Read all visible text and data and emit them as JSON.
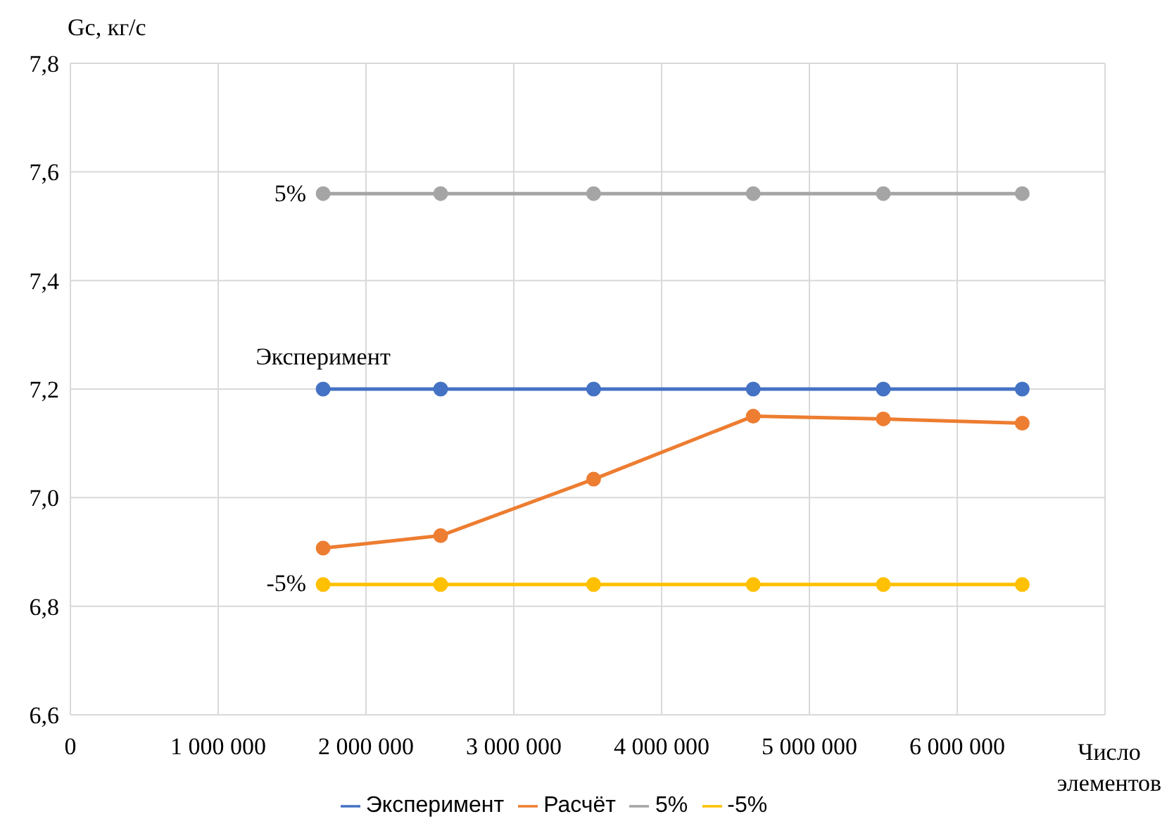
{
  "chart_data": {
    "type": "line",
    "ylabel": "Gc, кг/с",
    "xlabel": "Число элементов",
    "x": [
      1710000,
      2505000,
      3540000,
      4620000,
      5500000,
      6440000
    ],
    "series": [
      {
        "name": "Эксперимент",
        "color": "#4472c4",
        "values": [
          7.2,
          7.2,
          7.2,
          7.2,
          7.2,
          7.2
        ]
      },
      {
        "name": "Расчёт",
        "color": "#ed7d31",
        "values": [
          6.907,
          6.93,
          7.034,
          7.15,
          7.145,
          7.137
        ]
      },
      {
        "name": "5%",
        "color": "#a5a5a5",
        "values": [
          7.56,
          7.56,
          7.56,
          7.56,
          7.56,
          7.56
        ]
      },
      {
        "name": "-5%",
        "color": "#ffc000",
        "values": [
          6.84,
          6.84,
          6.84,
          6.84,
          6.84,
          6.84
        ]
      }
    ],
    "xlim": [
      0,
      7000000
    ],
    "xticks": [
      0,
      {
        "value": 1000000,
        "label": "1 000 000"
      },
      {
        "value": 2000000,
        "label": "2 000 000"
      },
      {
        "value": 3000000,
        "label": "3 000 000"
      },
      {
        "value": 4000000,
        "label": "4 000 000"
      },
      {
        "value": 5000000,
        "label": "5 000 000"
      },
      {
        "value": 6000000,
        "label": "6 000 000"
      }
    ],
    "ylim": [
      6.6,
      7.8
    ],
    "yticks": [
      {
        "value": 6.6,
        "label": "6,6"
      },
      {
        "value": 6.8,
        "label": "6,8"
      },
      {
        "value": 7.0,
        "label": "7,0"
      },
      {
        "value": 7.2,
        "label": "7,2"
      },
      {
        "value": 7.4,
        "label": "7,4"
      },
      {
        "value": 7.6,
        "label": "7,6"
      },
      {
        "value": 7.8,
        "label": "7,8"
      }
    ],
    "annotations": [
      "5%",
      "Эксперимент",
      "-5%"
    ],
    "grid": true,
    "legend": "bottom",
    "marker": "circle",
    "line_style": "solid"
  }
}
